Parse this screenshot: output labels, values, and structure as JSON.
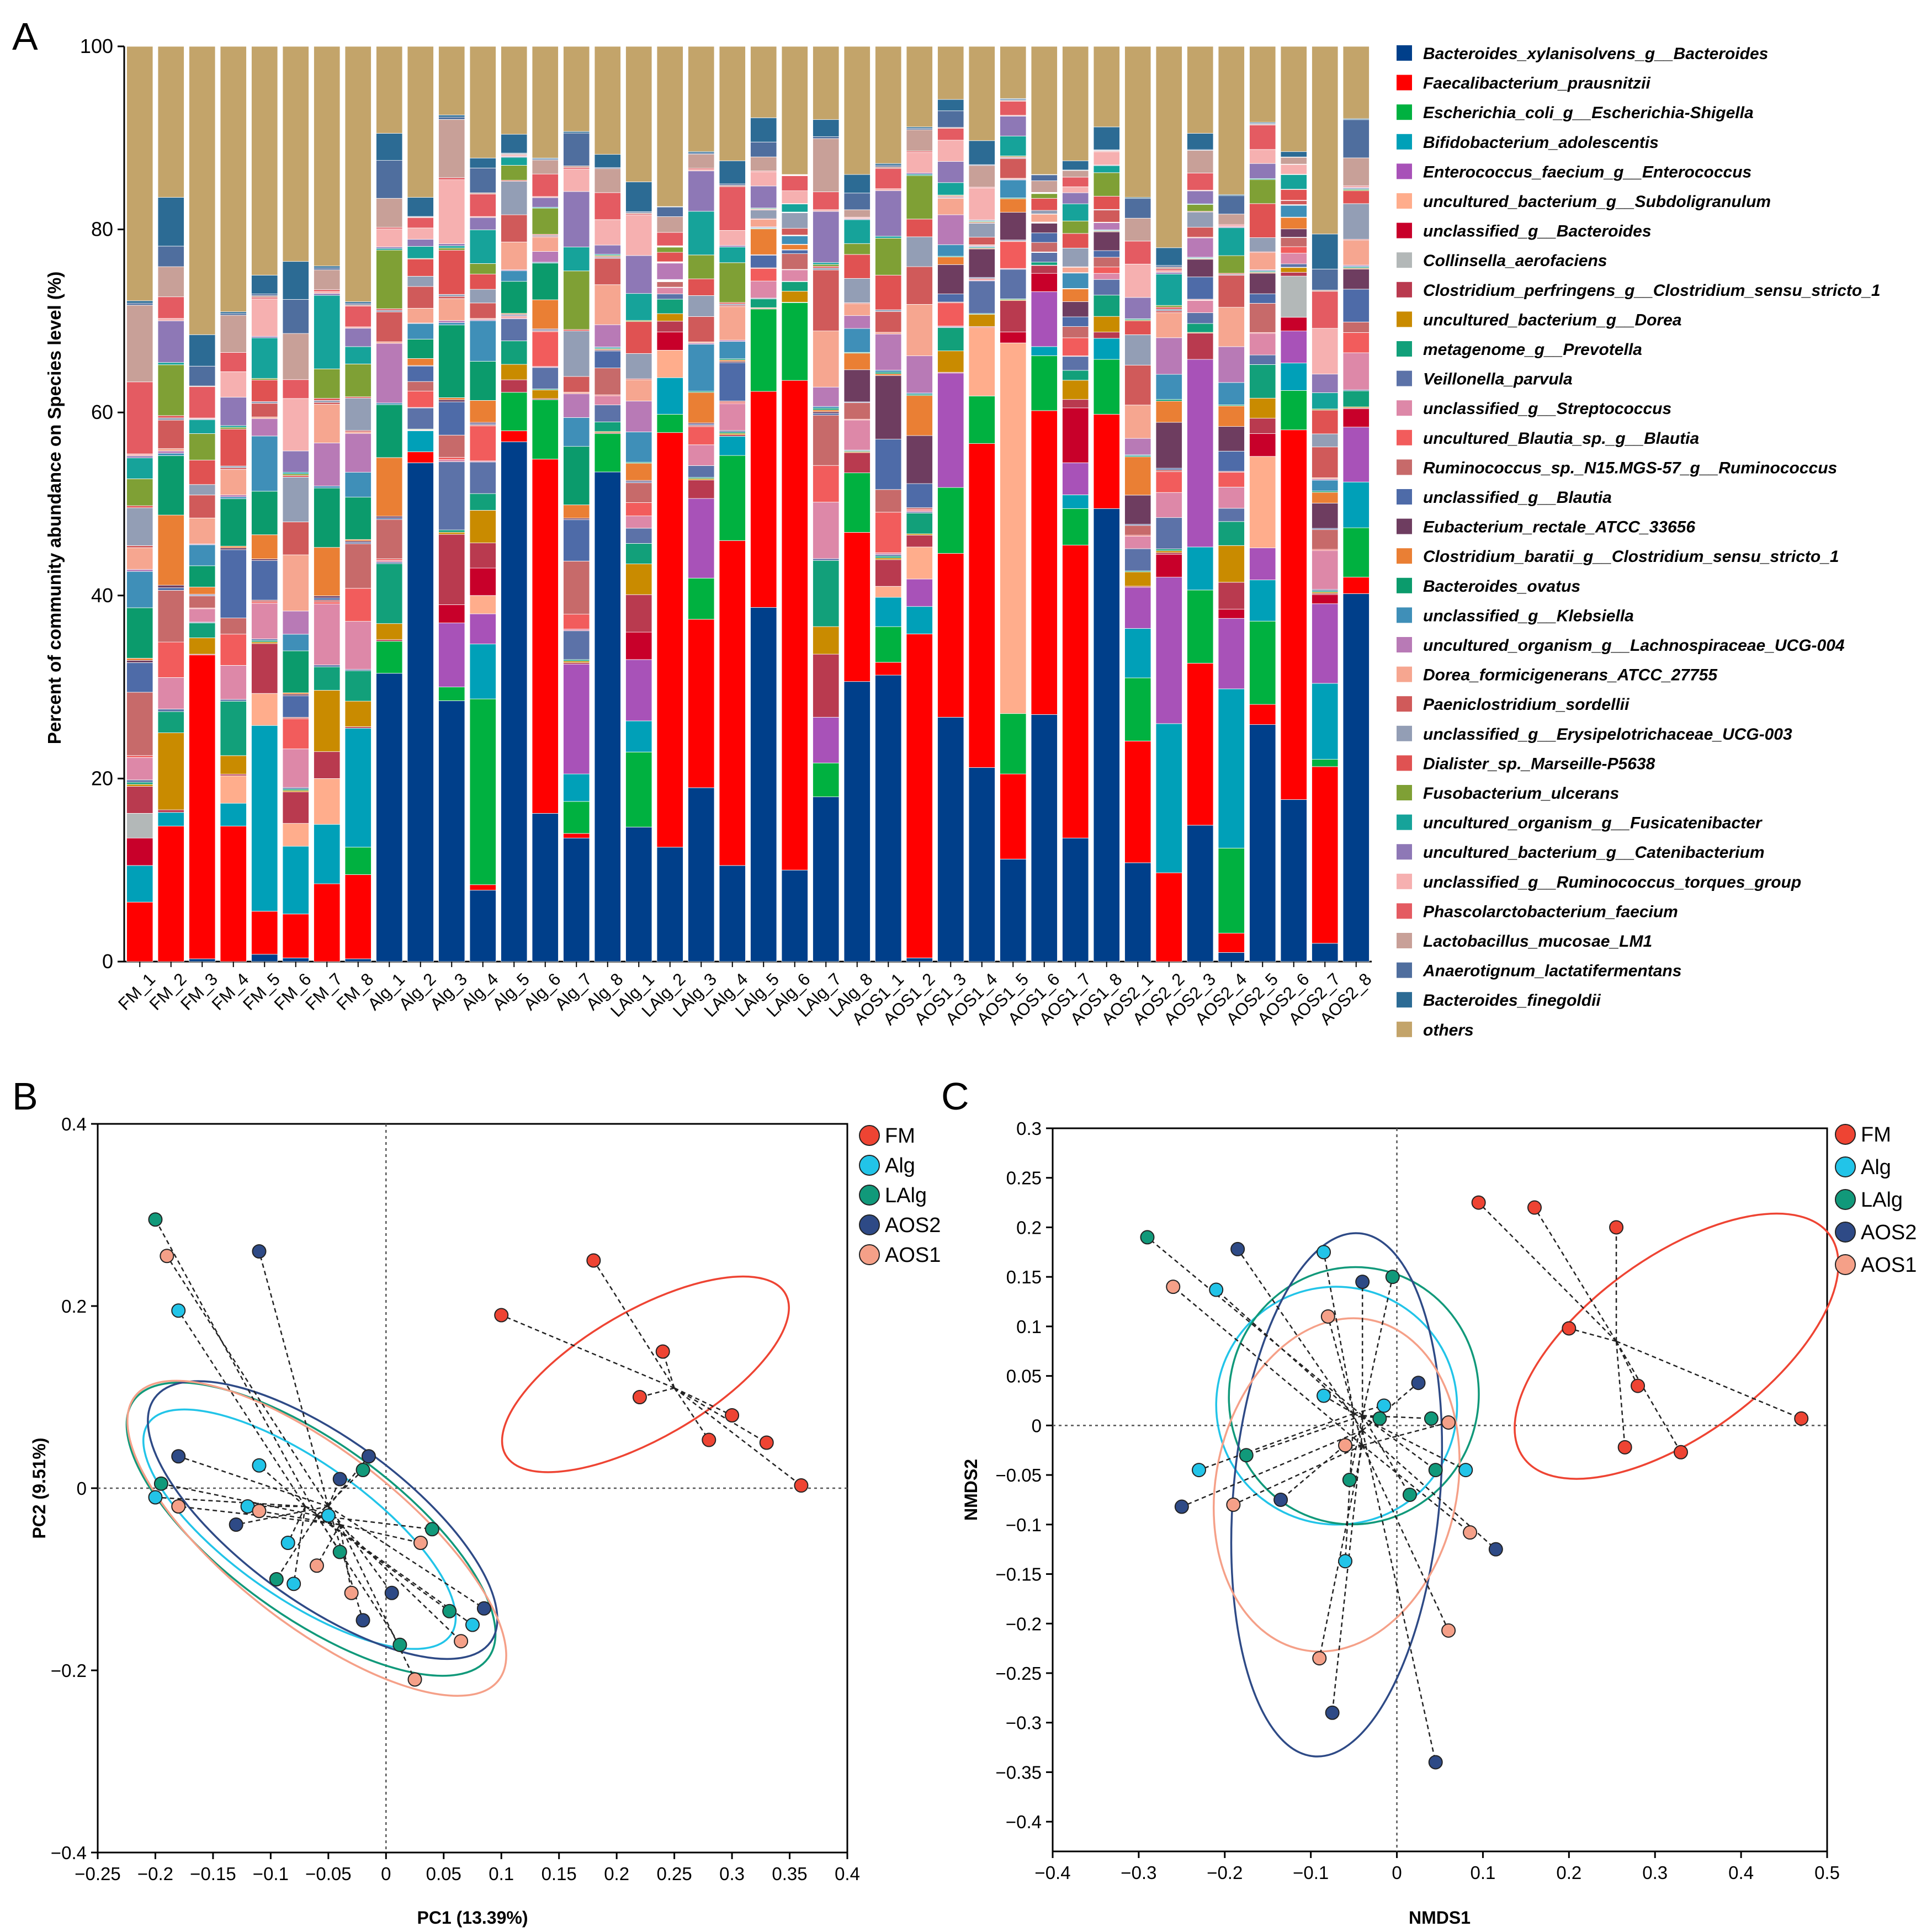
{
  "colors": {
    "species": [
      "#003f8a",
      "#ff0000",
      "#00b140",
      "#00a0b8",
      "#a852b8",
      "#ffad8c",
      "#c8002a",
      "#b3b8b8",
      "#b93a4f",
      "#c98b00",
      "#12a07a",
      "#5c72a8",
      "#dd88a8",
      "#f25c5c",
      "#c76a6a",
      "#4e6ba8",
      "#6e3d60",
      "#ea7f34",
      "#0b9b6c",
      "#3f8fb8",
      "#b87ab6",
      "#f6a690",
      "#d05a5a",
      "#939eb5",
      "#e05252",
      "#7fa035",
      "#16a39a",
      "#8e78b6",
      "#f6b0b0",
      "#e45b62",
      "#c8a098",
      "#4f6e9e",
      "#2c6b94",
      "#c3a46a"
    ],
    "groups": {
      "FM": "#ee4433",
      "Alg": "#22c4e8",
      "LAlg": "#11997a",
      "AOS2": "#2e4a86",
      "AOS1": "#f5a088"
    }
  },
  "panels": {
    "A": "A",
    "B": "B",
    "C": "C"
  },
  "chart_data": [
    {
      "type": "bar",
      "stacked": true,
      "panel": "A",
      "ylabel": "Percent of community abundance on Species level (%)",
      "ylim": [
        0,
        100
      ],
      "yticks": [
        "0",
        "20",
        "40",
        "60",
        "80",
        "100"
      ],
      "categories": [
        "FM_1",
        "FM_2",
        "FM_3",
        "FM_4",
        "FM_5",
        "FM_6",
        "FM_7",
        "FM_8",
        "Alg_1",
        "Alg_2",
        "Alg_3",
        "Alg_4",
        "Alg_5",
        "Alg_6",
        "Alg_7",
        "Alg_8",
        "LAlg_1",
        "LAlg_2",
        "LAlg_3",
        "LAlg_4",
        "LAlg_5",
        "LAlg_6",
        "LAlg_7",
        "LAlg_8",
        "AOS1_1",
        "AOS1_2",
        "AOS1_3",
        "AOS1_4",
        "AOS1_5",
        "AOS1_6",
        "AOS1_7",
        "AOS1_8",
        "AOS2_1",
        "AOS2_2",
        "AOS2_3",
        "AOS2_4",
        "AOS2_5",
        "AOS2_6",
        "AOS2_7",
        "AOS2_8"
      ],
      "legend": [
        "Bacteroides_xylanisolvens_g__Bacteroides",
        "Faecalibacterium_prausnitzii",
        "Escherichia_coli_g__Escherichia-Shigella",
        "Bifidobacterium_adolescentis",
        "Enterococcus_faecium_g__Enterococcus",
        "uncultured_bacterium_g__Subdoligranulum",
        "unclassified_g__Bacteroides",
        "Collinsella_aerofaciens",
        "Clostridium_perfringens_g__Clostridium_sensu_stricto_1",
        "uncultured_bacterium_g__Dorea",
        "metagenome_g__Prevotella",
        "Veillonella_parvula",
        "unclassified_g__Streptococcus",
        "uncultured_Blautia_sp._g__Blautia",
        "Ruminococcus_sp._N15.MGS-57_g__Ruminococcus",
        "unclassified_g__Blautia",
        "Eubacterium_rectale_ATCC_33656",
        "Clostridium_baratii_g__Clostridium_sensu_stricto_1",
        "Bacteroides_ovatus",
        "unclassified_g__Klebsiella",
        "uncultured_organism_g__Lachnospiraceae_UCG-004",
        "Dorea_formicigenerans_ATCC_27755",
        "Paeniclostridium_sordellii",
        "unclassified_g__Erysipelotrichaceae_UCG-003",
        "Dialister_sp._Marseille-P5638",
        "Fusobacterium_ulcerans",
        "uncultured_organism_g__Fusicatenibacter",
        "uncultured_bacterium_g__Catenibacterium",
        "unclassified_g__Ruminococcus_torques_group",
        "Phascolarctobacterium_faecium",
        "Lactobacillus_mucosae_LM1",
        "Anaerotignum_lactatifermentans",
        "Bacteroides_finegoldii",
        "others"
      ],
      "major": [
        [
          0,
          6.5,
          0,
          4,
          0,
          0,
          3,
          2.7
        ],
        [
          0,
          14.8,
          0,
          1.5,
          0,
          0,
          0,
          0
        ],
        [
          0.3,
          33.2,
          0,
          0,
          0,
          0,
          0,
          0
        ],
        [
          0,
          14.8,
          0,
          2.5,
          0,
          3,
          0,
          0
        ],
        [
          0.8,
          4.7,
          0,
          20.3,
          0,
          3.5,
          0,
          0
        ],
        [
          0.4,
          4.8,
          0,
          7.4,
          0,
          2.5,
          0,
          0
        ],
        [
          0,
          8.5,
          0,
          6.5,
          0,
          5,
          0,
          0
        ],
        [
          0.3,
          9.2,
          3,
          13,
          0,
          0,
          0,
          0
        ],
        [
          31.5,
          0,
          3.5,
          0,
          0,
          0,
          0,
          0
        ],
        [
          54.5,
          1.2,
          0,
          2.3,
          0,
          0,
          0,
          0
        ],
        [
          28.5,
          0,
          1.5,
          0,
          7,
          0,
          2,
          0
        ],
        [
          7.8,
          0.6,
          20.3,
          6,
          3.3,
          2,
          3,
          0
        ],
        [
          56.8,
          1.2,
          4.2,
          0,
          0,
          0,
          0,
          0
        ],
        [
          16.2,
          38.7,
          6.5,
          0,
          0,
          0,
          0,
          0
        ],
        [
          13.5,
          0.5,
          3.5,
          3,
          12,
          0,
          0,
          0
        ],
        [
          53.5,
          0,
          4.2,
          0,
          0,
          0,
          0,
          0
        ],
        [
          14.7,
          0,
          8.2,
          3.4,
          6.7,
          0,
          3,
          0
        ],
        [
          12.5,
          45.3,
          2,
          4,
          0,
          3,
          2,
          0
        ],
        [
          19,
          18.4,
          4.5,
          0,
          8.7,
          0,
          0,
          0
        ],
        [
          10.5,
          35.5,
          9.3,
          2.1,
          0,
          0,
          0,
          0
        ],
        [
          38.7,
          23.6,
          9,
          0,
          0,
          0,
          0,
          0
        ],
        [
          10,
          53.5,
          8.5,
          0,
          0,
          0,
          0,
          0
        ],
        [
          18,
          0,
          3.7,
          0,
          5,
          0,
          0,
          0
        ],
        [
          30.6,
          16.3,
          6.5,
          0,
          0,
          0,
          0,
          0
        ],
        [
          31.3,
          1.4,
          3.9,
          3.2,
          0,
          1.2,
          0,
          0
        ],
        [
          0.4,
          35.4,
          0,
          3,
          3,
          3.5,
          0,
          0
        ],
        [
          26.7,
          17.9,
          7.2,
          0,
          12.5,
          0,
          0,
          0
        ],
        [
          21.2,
          35.4,
          5.2,
          0,
          0,
          7.5,
          0,
          0
        ],
        [
          11.2,
          9.3,
          6.6,
          0,
          0,
          40.5,
          1.2,
          0
        ],
        [
          27,
          33.2,
          6,
          1,
          6,
          0,
          2,
          0
        ],
        [
          13.5,
          32,
          4,
          1.5,
          3.5,
          0,
          6,
          0
        ],
        [
          49.5,
          10.3,
          6,
          2.3,
          0,
          0,
          0,
          0
        ],
        [
          10.8,
          13.3,
          6.9,
          5.4,
          4.5,
          0,
          0,
          0
        ],
        [
          0,
          9.7,
          0,
          16.3,
          16,
          0,
          2.5,
          0
        ],
        [
          14.9,
          17.7,
          8,
          4.7,
          20.5,
          0,
          0,
          0
        ],
        [
          1,
          2.1,
          9.3,
          17.4,
          7.7,
          0,
          1,
          0
        ],
        [
          25.9,
          2.2,
          9.1,
          4.5,
          3.5,
          10,
          2.5,
          0
        ],
        [
          17.7,
          40.4,
          4.3,
          3,
          3.5,
          0,
          1.5,
          4.5
        ],
        [
          2,
          19.3,
          0.8,
          8.3,
          8.7,
          0,
          1,
          0
        ],
        [
          40.2,
          1.8,
          5.4,
          5,
          6,
          0,
          2,
          0
        ]
      ],
      "others": [
        27.8,
        16.5,
        31.5,
        29,
        25,
        23.5,
        24,
        27.9,
        9.5,
        16.5,
        7.5,
        12.2,
        9.6,
        12.2,
        9.3,
        11.8,
        14.8,
        17.5,
        11.5,
        12.5,
        7.8,
        14,
        8,
        14,
        12.8,
        8.8,
        5.8,
        10.3,
        5.7,
        14,
        12.5,
        8.8,
        16.5,
        22,
        9.5,
        16.2,
        8.3,
        11.5,
        20.5,
        7.9
      ]
    },
    {
      "type": "scatter",
      "panel": "B",
      "xlabel": "PC1 (13.39%)",
      "ylabel": "PC2 (9.51%)",
      "xlim": [
        -0.25,
        0.4
      ],
      "ylim": [
        -0.4,
        0.4
      ],
      "xticks": [
        "−0.25",
        "−0.2",
        "−0.15",
        "−0.1",
        "−0.05",
        "0",
        "0.05",
        "0.1",
        "0.15",
        "0.2",
        "0.25",
        "0.3",
        "0.35",
        "0.4"
      ],
      "yticks": [
        "−0.4",
        "−0.2",
        "0",
        "0.2",
        "0.4"
      ],
      "legend_position": "top-right",
      "series": [
        {
          "name": "FM",
          "centroid": [
            0.25,
            0.11
          ],
          "points": [
            [
              0.18,
              0.25
            ],
            [
              0.1,
              0.19
            ],
            [
              0.24,
              0.15
            ],
            [
              0.22,
              0.1
            ],
            [
              0.3,
              0.08
            ],
            [
              0.33,
              0.05
            ],
            [
              0.28,
              0.053
            ],
            [
              0.36,
              0.003
            ]
          ]
        },
        {
          "name": "Alg",
          "centroid": [
            -0.07,
            -0.02
          ],
          "points": [
            [
              -0.18,
              0.195
            ],
            [
              -0.11,
              0.025
            ],
            [
              -0.2,
              -0.01
            ],
            [
              -0.12,
              -0.02
            ],
            [
              -0.05,
              -0.03
            ],
            [
              -0.085,
              -0.06
            ],
            [
              -0.08,
              -0.105
            ],
            [
              0.075,
              -0.15
            ]
          ]
        },
        {
          "name": "LAlg",
          "centroid": [
            -0.06,
            -0.03
          ],
          "points": [
            [
              -0.2,
              0.295
            ],
            [
              -0.195,
              0.005
            ],
            [
              -0.02,
              0.02
            ],
            [
              -0.095,
              -0.1
            ],
            [
              -0.04,
              -0.07
            ],
            [
              0.04,
              -0.045
            ],
            [
              0.055,
              -0.135
            ],
            [
              0.012,
              -0.172
            ]
          ]
        },
        {
          "name": "AOS2",
          "centroid": [
            -0.05,
            -0.02
          ],
          "points": [
            [
              -0.11,
              0.26
            ],
            [
              -0.18,
              0.035
            ],
            [
              -0.13,
              -0.04
            ],
            [
              -0.04,
              0.01
            ],
            [
              -0.015,
              0.035
            ],
            [
              -0.02,
              -0.145
            ],
            [
              0.005,
              -0.115
            ],
            [
              0.085,
              -0.132
            ]
          ]
        },
        {
          "name": "AOS1",
          "centroid": [
            -0.04,
            -0.04
          ],
          "points": [
            [
              -0.19,
              0.255
            ],
            [
              -0.18,
              -0.02
            ],
            [
              -0.11,
              -0.025
            ],
            [
              -0.06,
              -0.085
            ],
            [
              -0.03,
              -0.115
            ],
            [
              0.03,
              -0.06
            ],
            [
              0.065,
              -0.168
            ],
            [
              0.025,
              -0.21
            ]
          ]
        }
      ],
      "ellipses": [
        {
          "name": "FM",
          "cx": 0.225,
          "cy": 0.125,
          "rx": 0.14,
          "ry": 0.07,
          "angle": -30
        },
        {
          "name": "Alg",
          "cx": -0.075,
          "cy": -0.045,
          "rx": 0.16,
          "ry": 0.075,
          "angle": 35
        },
        {
          "name": "LAlg",
          "cx": -0.065,
          "cy": -0.045,
          "rx": 0.19,
          "ry": 0.095,
          "angle": 36
        },
        {
          "name": "AOS2",
          "cx": -0.055,
          "cy": -0.035,
          "rx": 0.18,
          "ry": 0.09,
          "angle": 36
        },
        {
          "name": "AOS1",
          "cx": -0.06,
          "cy": -0.055,
          "rx": 0.2,
          "ry": 0.095,
          "angle": 38
        }
      ]
    },
    {
      "type": "scatter",
      "panel": "C",
      "xlabel": "NMDS1",
      "ylabel": "NMDS2",
      "xlim": [
        -0.4,
        0.5
      ],
      "ylim": [
        -0.43,
        0.3
      ],
      "xticks": [
        "−0.4",
        "−0.3",
        "−0.2",
        "−0.1",
        "0",
        "0.1",
        "0.2",
        "0.3",
        "0.4",
        "0.5"
      ],
      "yticks": [
        "−0.4",
        "−0.35",
        "−0.3",
        "−0.25",
        "−0.2",
        "−0.15",
        "−0.1",
        "−0.05",
        "0",
        "0.05",
        "0.1",
        "0.15",
        "0.2",
        "0.25",
        "0.3"
      ],
      "legend_position": "top-right",
      "series": [
        {
          "name": "FM",
          "centroid": [
            0.255,
            0.085
          ],
          "points": [
            [
              0.095,
              0.225
            ],
            [
              0.16,
              0.22
            ],
            [
              0.255,
              0.2
            ],
            [
              0.2,
              0.098
            ],
            [
              0.28,
              0.04
            ],
            [
              0.265,
              -0.022
            ],
            [
              0.33,
              -0.027
            ],
            [
              0.47,
              0.007
            ]
          ]
        },
        {
          "name": "Alg",
          "centroid": [
            -0.05,
            0.012
          ],
          "points": [
            [
              -0.085,
              0.175
            ],
            [
              -0.21,
              0.137
            ],
            [
              -0.085,
              0.03
            ],
            [
              -0.015,
              0.02
            ],
            [
              -0.23,
              -0.045
            ],
            [
              -0.06,
              -0.137
            ],
            [
              0.08,
              -0.045
            ]
          ]
        },
        {
          "name": "LAlg",
          "centroid": [
            -0.04,
            0.01
          ],
          "points": [
            [
              -0.29,
              0.19
            ],
            [
              -0.005,
              0.15
            ],
            [
              -0.175,
              -0.03
            ],
            [
              -0.02,
              0.007
            ],
            [
              0.04,
              0.007
            ],
            [
              0.045,
              -0.045
            ],
            [
              0.015,
              -0.07
            ],
            [
              -0.055,
              -0.055
            ]
          ]
        },
        {
          "name": "AOS2",
          "centroid": [
            -0.04,
            -0.005
          ],
          "points": [
            [
              -0.185,
              0.178
            ],
            [
              -0.04,
              0.145
            ],
            [
              0.025,
              0.043
            ],
            [
              -0.25,
              -0.082
            ],
            [
              -0.135,
              -0.075
            ],
            [
              0.115,
              -0.125
            ],
            [
              -0.075,
              -0.29
            ],
            [
              0.045,
              -0.34
            ]
          ]
        },
        {
          "name": "AOS1",
          "centroid": [
            -0.04,
            -0.02
          ],
          "points": [
            [
              -0.26,
              0.14
            ],
            [
              -0.08,
              0.11
            ],
            [
              0.06,
              0.003
            ],
            [
              -0.06,
              -0.02
            ],
            [
              -0.19,
              -0.08
            ],
            [
              0.085,
              -0.108
            ],
            [
              0.06,
              -0.207
            ],
            [
              -0.09,
              -0.235
            ]
          ]
        }
      ],
      "ellipses": [
        {
          "name": "FM",
          "cx": 0.325,
          "cy": 0.08,
          "rx": 0.22,
          "ry": 0.09,
          "angle": -36
        },
        {
          "name": "Alg",
          "cx": -0.07,
          "cy": 0.02,
          "rx": 0.14,
          "ry": 0.12,
          "angle": 10
        },
        {
          "name": "LAlg",
          "cx": -0.05,
          "cy": 0.03,
          "rx": 0.145,
          "ry": 0.13,
          "angle": 12
        },
        {
          "name": "AOS2",
          "cx": -0.07,
          "cy": -0.07,
          "rx": 0.12,
          "ry": 0.265,
          "angle": 5
        },
        {
          "name": "AOS1",
          "cx": -0.07,
          "cy": -0.06,
          "rx": 0.14,
          "ry": 0.17,
          "angle": 12
        }
      ]
    }
  ]
}
